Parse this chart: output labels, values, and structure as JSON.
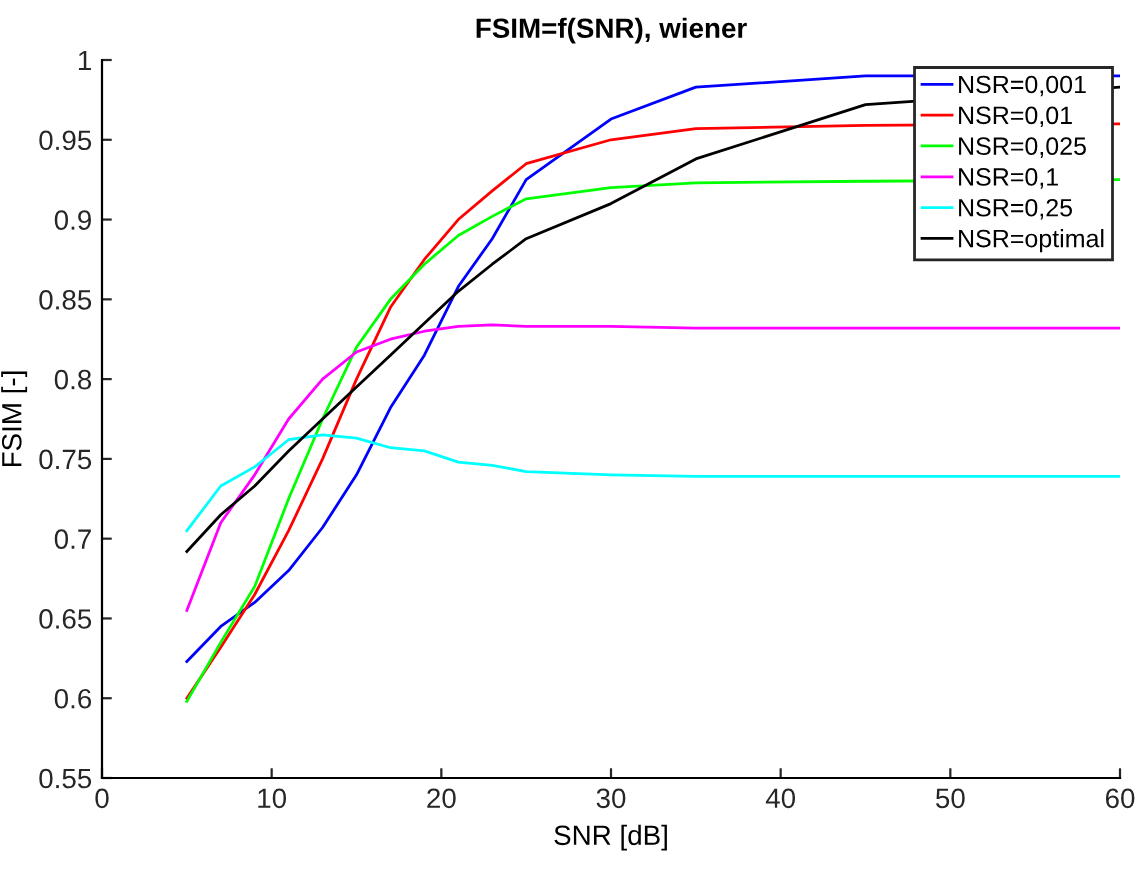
{
  "chart_data": {
    "type": "line",
    "title": "FSIM=f(SNR), wiener",
    "xlabel": "SNR [dB]",
    "ylabel": "FSIM [-]",
    "xlim": [
      0,
      60
    ],
    "xticks": [
      0,
      10,
      20,
      30,
      40,
      50,
      60
    ],
    "ylim": [
      0.55,
      1
    ],
    "yticks": [
      0.55,
      0.6,
      0.65,
      0.7,
      0.75,
      0.8,
      0.85,
      0.9,
      0.95,
      1
    ],
    "grid": false,
    "legend": "top right",
    "x": [
      5,
      7,
      9,
      11,
      13,
      15,
      17,
      19,
      21,
      23,
      25,
      30,
      35,
      45,
      60
    ],
    "series": [
      {
        "name": "NSR=0,001",
        "color": "#0000ff",
        "values": [
          0.623,
          0.645,
          0.66,
          0.68,
          0.707,
          0.74,
          0.782,
          0.815,
          0.858,
          0.888,
          0.925,
          0.963,
          0.983,
          0.99,
          0.99
        ]
      },
      {
        "name": "NSR=0,01",
        "color": "#ff0000",
        "values": [
          0.6,
          0.632,
          0.665,
          0.705,
          0.75,
          0.8,
          0.845,
          0.875,
          0.9,
          0.918,
          0.935,
          0.95,
          0.957,
          0.959,
          0.96
        ]
      },
      {
        "name": "NSR=0,025",
        "color": "#00ff00",
        "values": [
          0.598,
          0.635,
          0.67,
          0.725,
          0.775,
          0.82,
          0.85,
          0.872,
          0.89,
          0.902,
          0.913,
          0.92,
          0.923,
          0.924,
          0.925
        ]
      },
      {
        "name": "NSR=0,1",
        "color": "#ff00ff",
        "values": [
          0.655,
          0.71,
          0.74,
          0.775,
          0.8,
          0.817,
          0.825,
          0.83,
          0.833,
          0.834,
          0.833,
          0.833,
          0.832,
          0.832,
          0.832
        ]
      },
      {
        "name": "NSR=0,25",
        "color": "#00ffff",
        "values": [
          0.705,
          0.733,
          0.745,
          0.762,
          0.765,
          0.763,
          0.757,
          0.755,
          0.748,
          0.746,
          0.742,
          0.74,
          0.739,
          0.739,
          0.739
        ]
      },
      {
        "name": "NSR=optimal",
        "color": "#000000",
        "values": [
          0.692,
          0.715,
          0.733,
          0.755,
          0.775,
          0.795,
          0.815,
          0.835,
          0.855,
          0.872,
          0.888,
          0.91,
          0.938,
          0.972,
          0.983
        ]
      }
    ]
  }
}
